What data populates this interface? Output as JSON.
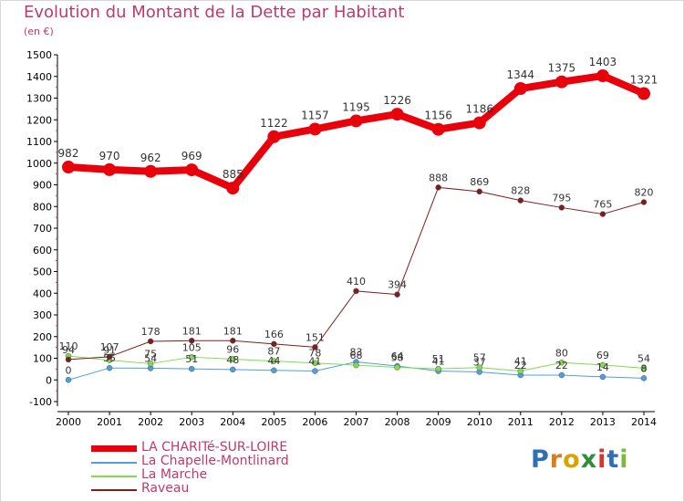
{
  "title": "Evolution du Montant de la Dette par Habitant",
  "subtitle": "(en €)",
  "logo": "Proxiti",
  "chart_data": {
    "type": "line",
    "title": "Evolution du Montant de la Dette par Habitant",
    "subtitle": "(en €)",
    "xlabel": "",
    "ylabel": "",
    "x": [
      2000,
      2001,
      2002,
      2003,
      2004,
      2005,
      2006,
      2007,
      2008,
      2009,
      2010,
      2011,
      2012,
      2013,
      2014
    ],
    "ylim": [
      -100,
      1500
    ],
    "yticks": [
      -100,
      0,
      100,
      200,
      300,
      400,
      500,
      600,
      700,
      800,
      900,
      1000,
      1100,
      1200,
      1300,
      1400,
      1500
    ],
    "grid": false,
    "legend_position": "bottom-left",
    "series": [
      {
        "name": "LA CHARITé-SUR-LOIRE",
        "color": "#e8000b",
        "values": [
          982,
          970,
          962,
          969,
          885,
          1122,
          1157,
          1195,
          1226,
          1156,
          1186,
          1344,
          1375,
          1403,
          1321
        ]
      },
      {
        "name": "La Chapelle-Montlinard",
        "color": "#4f9fdd",
        "values": [
          0,
          55,
          54,
          51,
          48,
          44,
          41,
          83,
          64,
          41,
          37,
          22,
          22,
          14,
          8
        ]
      },
      {
        "name": "La Marche",
        "color": "#7fdc4e",
        "values": [
          110,
          91,
          75,
          105,
          96,
          87,
          78,
          68,
          58,
          51,
          57,
          41,
          80,
          69,
          54
        ]
      },
      {
        "name": "Raveau",
        "color": "#7a1e1e",
        "values": [
          94,
          107,
          178,
          181,
          181,
          166,
          151,
          410,
          394,
          888,
          869,
          828,
          795,
          765,
          820
        ]
      }
    ]
  },
  "colors": {
    "title": "#c0386d",
    "axis": "#000000",
    "background": "#ffffff"
  }
}
